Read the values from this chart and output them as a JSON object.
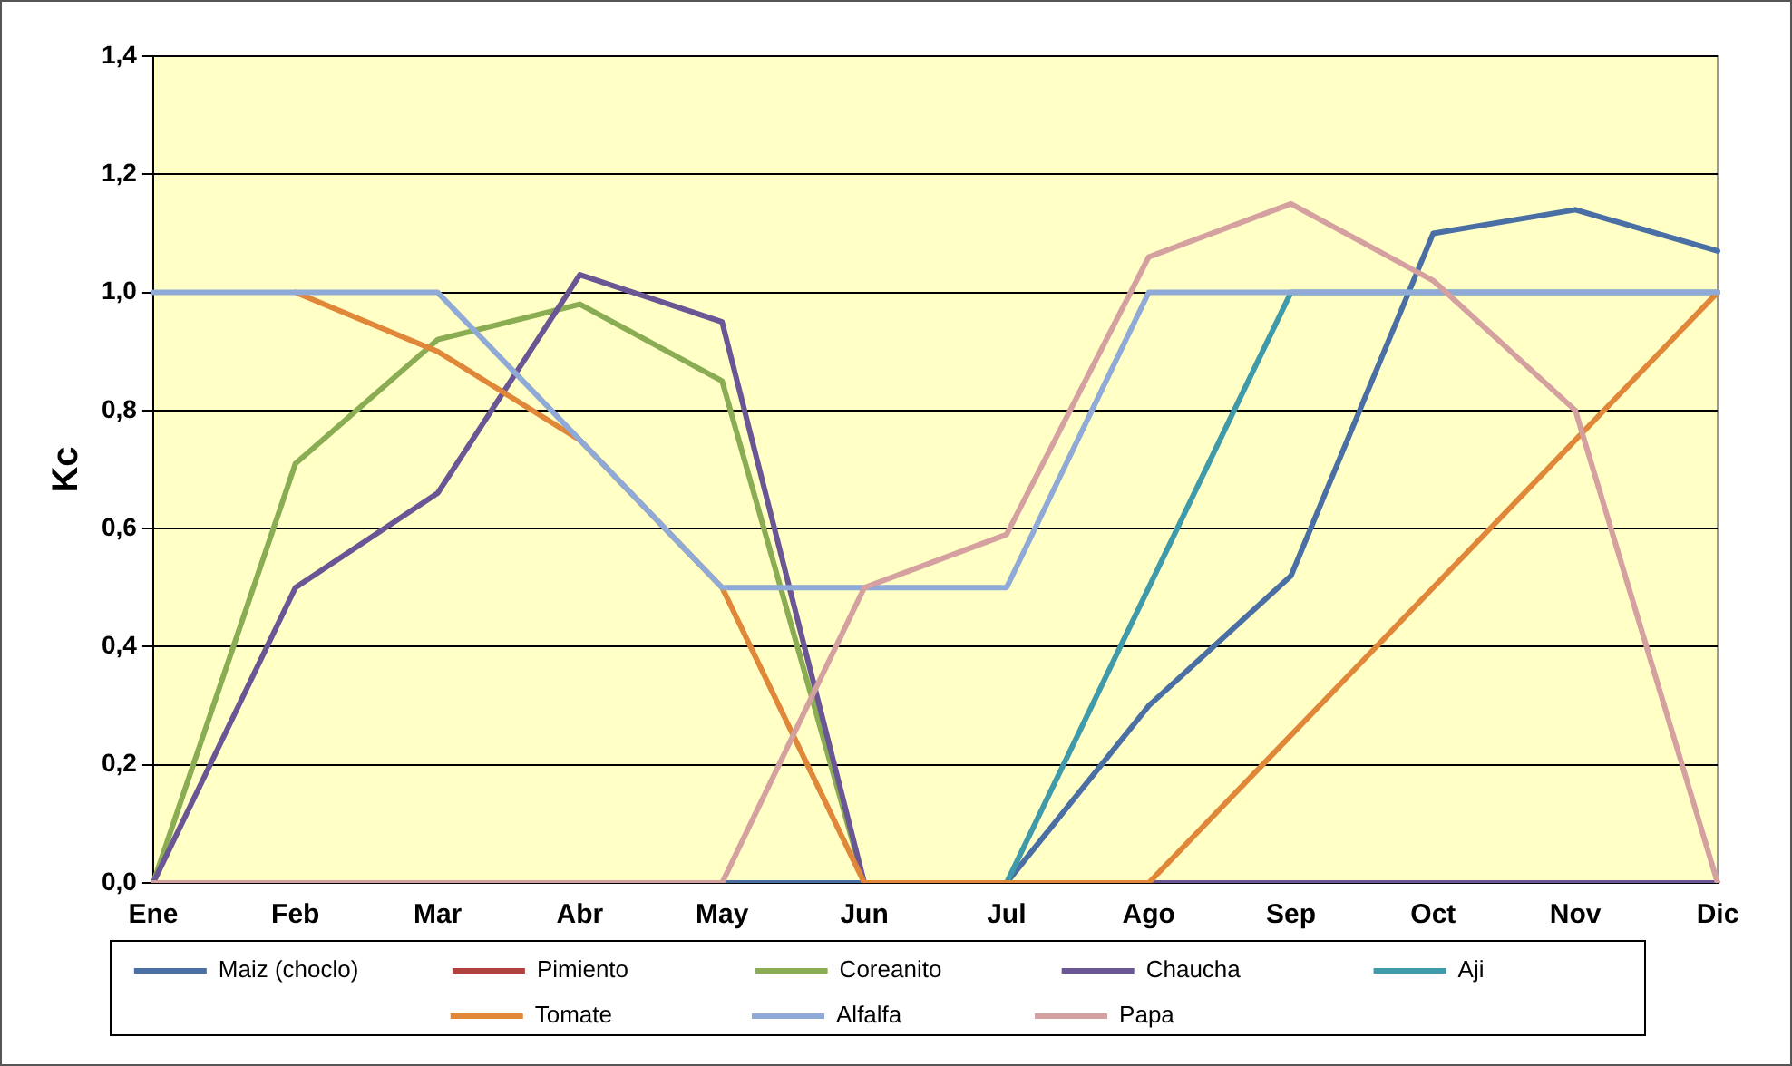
{
  "chart_data": {
    "type": "line",
    "ylabel": "Kc",
    "categories": [
      "Ene",
      "Feb",
      "Mar",
      "Abr",
      "May",
      "Jun",
      "Jul",
      "Ago",
      "Sep",
      "Oct",
      "Nov",
      "Dic"
    ],
    "series": [
      {
        "name": "Maiz (choclo)",
        "color": "#4a6fa5",
        "values": [
          null,
          null,
          null,
          null,
          0,
          0,
          0,
          0.3,
          0.52,
          1.1,
          1.14,
          1.07
        ]
      },
      {
        "name": "Pimiento",
        "color": "#b0413e",
        "values": [
          null,
          null,
          null,
          null,
          null,
          null,
          null,
          null,
          null,
          null,
          null,
          null
        ]
      },
      {
        "name": "Coreanito",
        "color": "#8aac52",
        "values": [
          0,
          0.71,
          0.92,
          0.98,
          0.85,
          0,
          null,
          null,
          null,
          null,
          null,
          null
        ]
      },
      {
        "name": "Chaucha",
        "color": "#6a5694",
        "values": [
          0,
          0.5,
          0.66,
          1.03,
          0.95,
          0,
          null,
          0,
          0,
          0,
          0,
          0
        ]
      },
      {
        "name": "Aji",
        "color": "#3f9aaa",
        "values": [
          null,
          null,
          null,
          null,
          null,
          null,
          0,
          0.5,
          1.0,
          1.0,
          1.0,
          1.0
        ]
      },
      {
        "name": "Tomate",
        "color": "#e0873a",
        "values": [
          null,
          1.0,
          0.9,
          0.75,
          0.5,
          0,
          0,
          0,
          0.25,
          0.5,
          0.75,
          1.0
        ]
      },
      {
        "name": "Alfalfa",
        "color": "#8faad6",
        "values": [
          1.0,
          1.0,
          1.0,
          0.75,
          0.5,
          0.5,
          0.5,
          1.0,
          1.0,
          1.0,
          1.0,
          1.0
        ]
      },
      {
        "name": "Papa",
        "color": "#d4a0a0",
        "values": [
          0,
          0,
          0,
          0,
          0,
          0.5,
          0.59,
          1.06,
          1.15,
          1.02,
          0.8,
          0
        ]
      }
    ],
    "ylim": [
      0,
      1.4
    ],
    "yticks": [
      {
        "value": 0,
        "label": "0,0"
      },
      {
        "value": 0.2,
        "label": "0,2"
      },
      {
        "value": 0.4,
        "label": "0,4"
      },
      {
        "value": 0.6,
        "label": "0,6"
      },
      {
        "value": 0.8,
        "label": "0,8"
      },
      {
        "value": 1.0,
        "label": "1,0"
      },
      {
        "value": 1.2,
        "label": "1,2"
      },
      {
        "value": 1.4,
        "label": "1,4"
      }
    ],
    "grid": "y",
    "legend": "bottom",
    "marker": "none",
    "line_style": "solid"
  }
}
